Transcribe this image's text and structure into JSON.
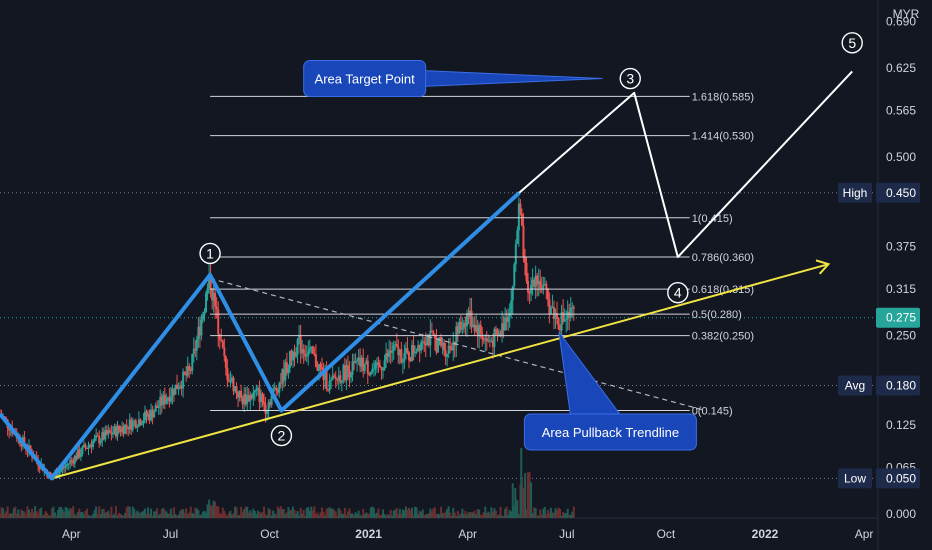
{
  "chart_data": {
    "type": "candlestick",
    "currency": "MYR",
    "y_axis": {
      "ticks": [
        "0.000",
        "0.065",
        "0.125",
        "0.180",
        "0.250",
        "0.315",
        "0.375",
        "0.450",
        "0.500",
        "0.565",
        "0.625",
        "0.690"
      ],
      "tick_values": [
        0.0,
        0.065,
        0.125,
        0.18,
        0.25,
        0.315,
        0.375,
        0.45,
        0.5,
        0.565,
        0.625,
        0.69
      ],
      "ylim": [
        -0.0055,
        0.72
      ]
    },
    "x_axis": {
      "ticks": [
        {
          "label": "Apr",
          "t": 0.25,
          "bold": false
        },
        {
          "label": "Jul",
          "t": 0.5,
          "bold": false
        },
        {
          "label": "Oct",
          "t": 0.75,
          "bold": false
        },
        {
          "label": "2021",
          "t": 1.0,
          "bold": true
        },
        {
          "label": "Apr",
          "t": 1.25,
          "bold": false
        },
        {
          "label": "Jul",
          "t": 1.5,
          "bold": false
        },
        {
          "label": "Oct",
          "t": 1.75,
          "bold": false
        },
        {
          "label": "2022",
          "t": 2.0,
          "bold": true
        },
        {
          "label": "Apr",
          "t": 2.25,
          "bold": false
        }
      ],
      "xlim": [
        0.07,
        2.28
      ]
    },
    "price_markers": [
      {
        "name": "High",
        "label": "High",
        "value": 0.45,
        "value_text": "0.450",
        "color": "#1e2a4a",
        "text_color": "#ffffff"
      },
      {
        "name": "Avg",
        "label": "Avg",
        "value": 0.18,
        "value_text": "0.180",
        "color": "#1e2a4a",
        "text_color": "#ffffff"
      },
      {
        "name": "Low",
        "label": "Low",
        "value": 0.05,
        "value_text": "0.050",
        "color": "#1e2a4a",
        "text_color": "#ffffff"
      },
      {
        "name": "Last",
        "label": "",
        "value": 0.275,
        "value_text": "0.275",
        "color": "#26a69a",
        "text_color": "#ffffff"
      }
    ],
    "fib_levels": [
      {
        "ratio": "1.618",
        "value": 0.585,
        "label": "1.618(0.585)"
      },
      {
        "ratio": "1.414",
        "value": 0.53,
        "label": "1.414(0.530)"
      },
      {
        "ratio": "1",
        "value": 0.415,
        "label": "1(0.415)"
      },
      {
        "ratio": "0.786",
        "value": 0.36,
        "label": "0.786(0.360)"
      },
      {
        "ratio": "0.618",
        "value": 0.315,
        "label": "0.618(0.315)"
      },
      {
        "ratio": "0.5",
        "value": 0.28,
        "label": "0.5(0.280)"
      },
      {
        "ratio": "0.382",
        "value": 0.25,
        "label": "0.382(0.250)"
      },
      {
        "ratio": "0",
        "value": 0.145,
        "label": "0(0.145)"
      }
    ],
    "fib_x_range": [
      0.6,
      1.81
    ],
    "wave_path_blue": [
      [
        0.07,
        0.14
      ],
      [
        0.2,
        0.05
      ],
      [
        0.6,
        0.335
      ],
      [
        0.78,
        0.145
      ],
      [
        1.38,
        0.45
      ]
    ],
    "wave_path_white": [
      [
        1.38,
        0.45
      ],
      [
        1.67,
        0.59
      ],
      [
        1.78,
        0.36
      ],
      [
        2.22,
        0.62
      ]
    ],
    "trendline_yellow": {
      "from": [
        0.2,
        0.05
      ],
      "to": [
        2.16,
        0.35
      ],
      "arrow": true
    },
    "trendline_dashed": {
      "from": [
        0.6,
        0.33
      ],
      "to": [
        1.85,
        0.145
      ]
    },
    "wave_labels": [
      {
        "text": "1",
        "x": 0.6,
        "y": 0.365
      },
      {
        "text": "2",
        "x": 0.78,
        "y": 0.11
      },
      {
        "text": "3",
        "x": 1.66,
        "y": 0.61
      },
      {
        "text": "4",
        "x": 1.78,
        "y": 0.31
      },
      {
        "text": "5",
        "x": 2.22,
        "y": 0.66
      }
    ],
    "annotations": [
      {
        "text": "Area Target Point",
        "x": 0.99,
        "y": 0.61,
        "pointer_to": [
          1.59,
          0.61
        ]
      },
      {
        "text": "Area Pullback Trendline",
        "x": 1.61,
        "y": 0.115,
        "pointer_from": [
          1.48,
          0.255
        ]
      }
    ],
    "last_price_line": 0.275,
    "high_line": 0.45,
    "avg_line": 0.18,
    "low_line": 0.05,
    "colors": {
      "background": "#131722",
      "up": "#26a69a",
      "down": "#ef5350",
      "blue_wave": "#2f8fe6",
      "white_wave": "#ffffff",
      "yellow": "#f0e442",
      "fib": "#d1d4dc",
      "label_box": "#1946b9",
      "axis_text": "#d1d4dc"
    }
  }
}
